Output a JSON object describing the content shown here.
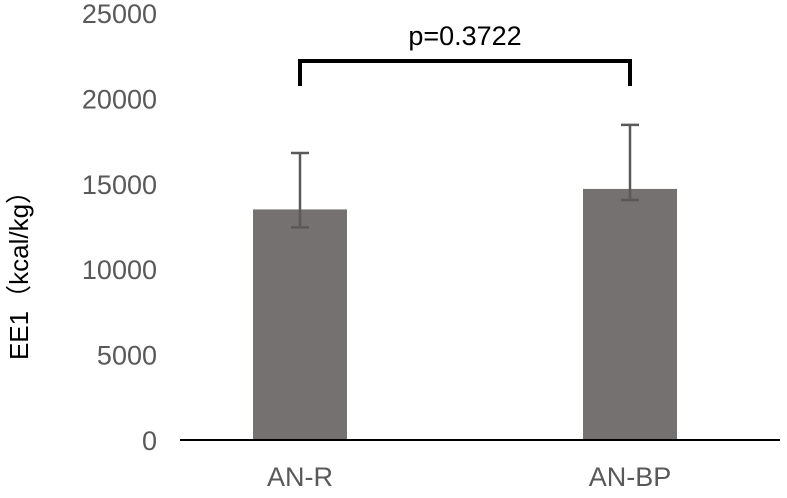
{
  "chart_data": {
    "type": "bar",
    "categories": [
      "AN-R",
      "AN-BP"
    ],
    "values": [
      13500,
      14700
    ],
    "error_upper": [
      16800,
      18450
    ],
    "error_lower": [
      12450,
      14050
    ],
    "ylabel": "EE1（kcal/kg）",
    "ylim": [
      0,
      25000
    ],
    "yticks": [
      0,
      5000,
      10000,
      15000,
      20000,
      25000
    ],
    "annotation": "p=0.3722",
    "grid": false,
    "colors": {
      "bar": "#757171",
      "error_bar": "#595959",
      "bracket": "#000000",
      "axis": "#000000"
    }
  }
}
